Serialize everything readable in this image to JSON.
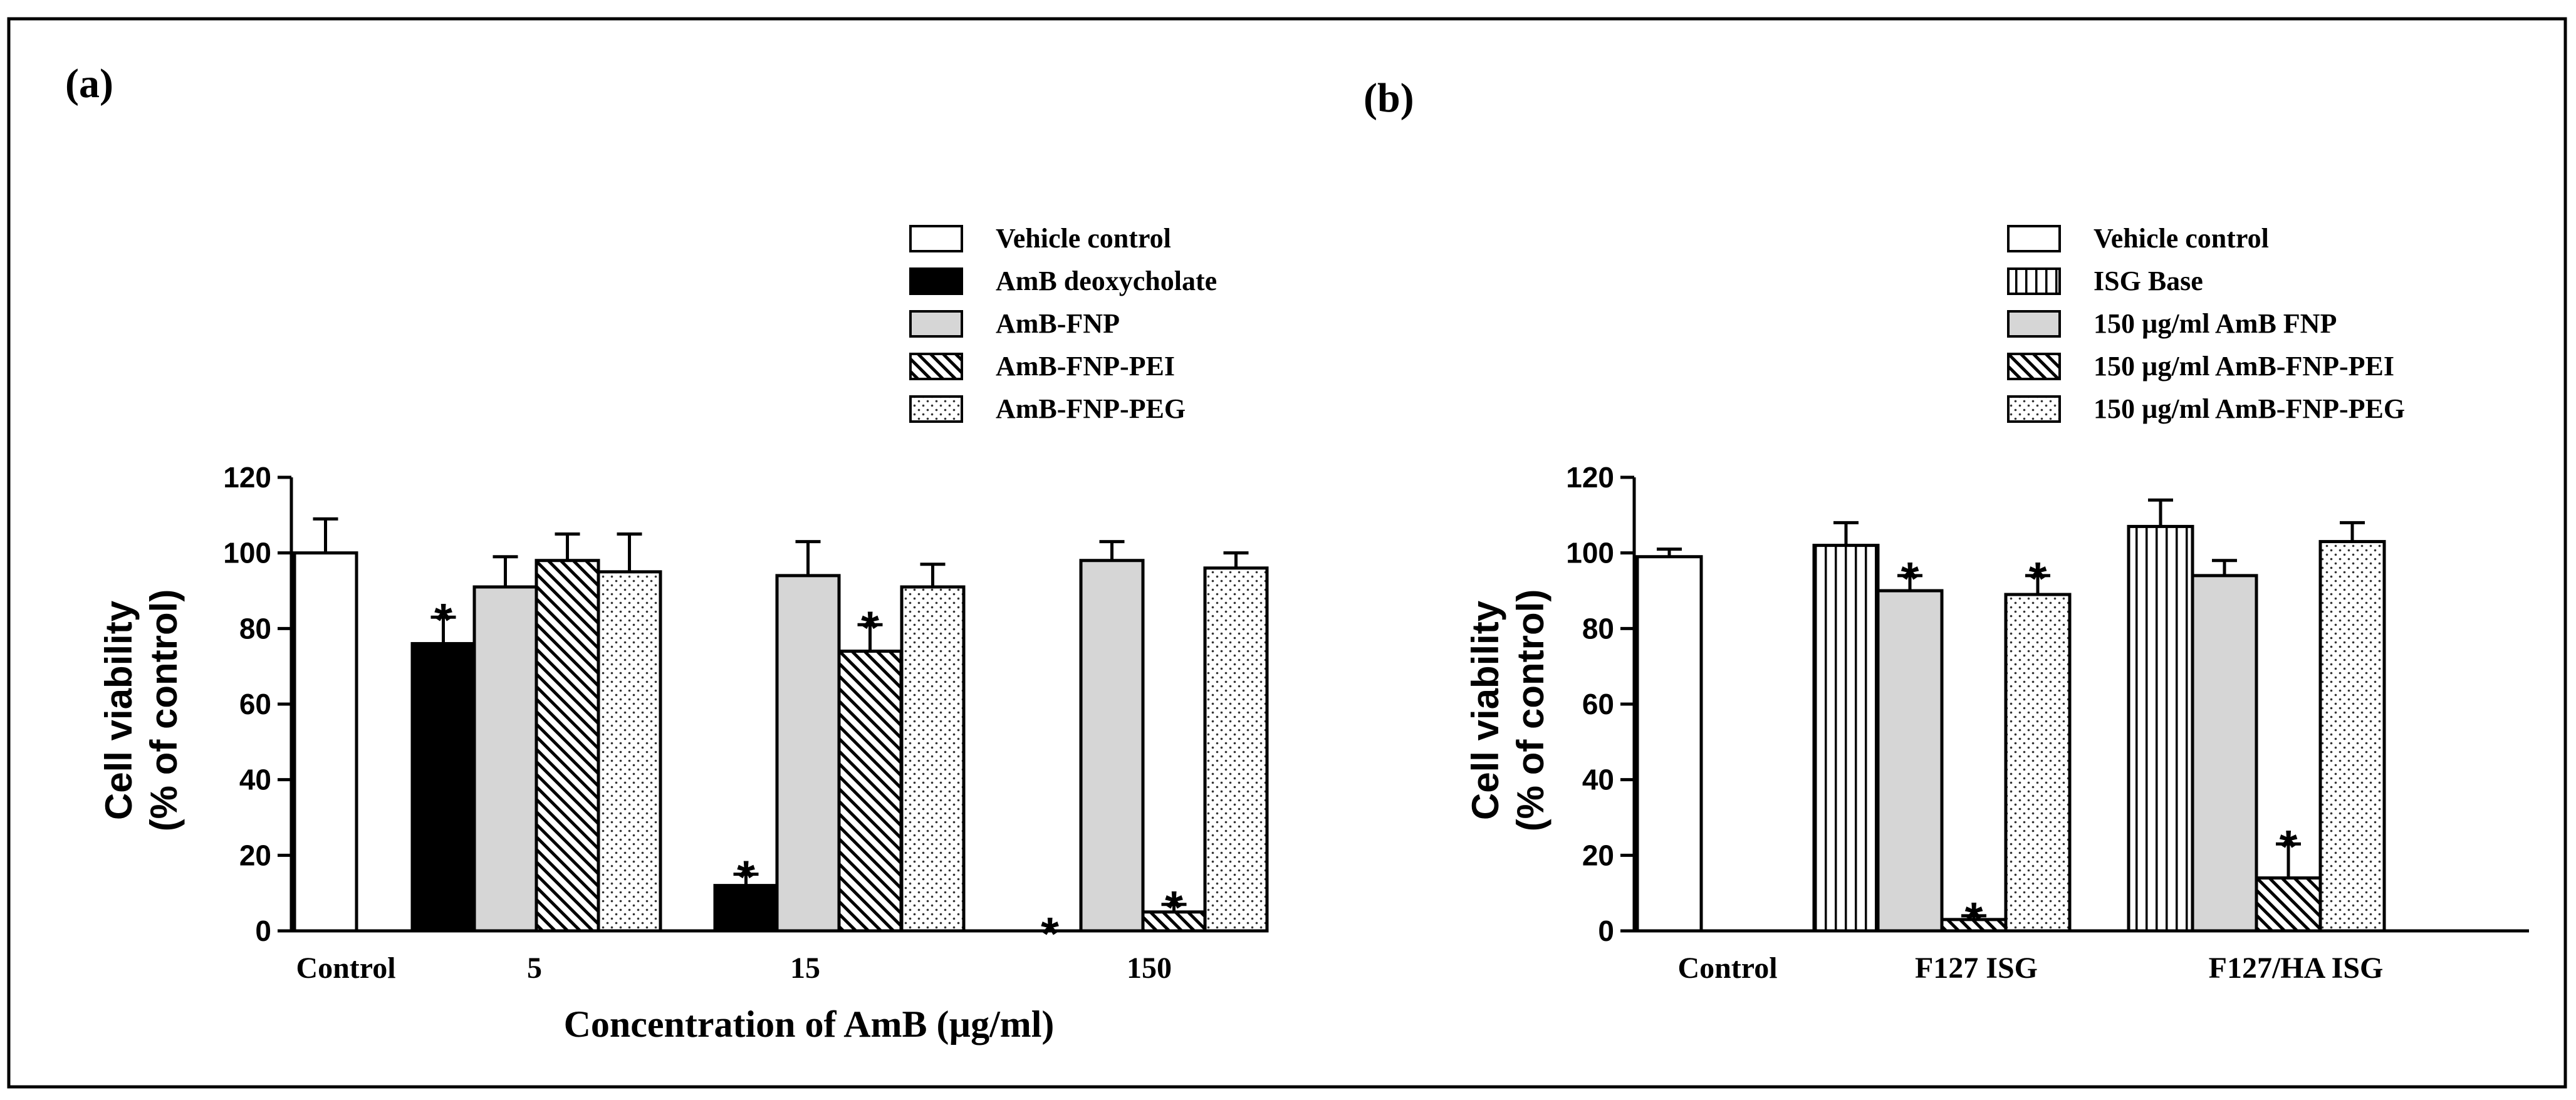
{
  "colors": {
    "vehicle": "#ffffff",
    "deoxycholate": "#000000",
    "fnp": "#d6d6d6",
    "axis": "#000000"
  },
  "chart_data": [
    {
      "panel_label": "(a)",
      "type": "bar",
      "ylabel": "Cell viability",
      "ylabel2": "(% of control)",
      "xlabel": "Concentration of AmB (µg/ml)",
      "ylim": [
        0,
        120
      ],
      "yticks": [
        "0",
        "20",
        "40",
        "60",
        "80",
        "100",
        "120"
      ],
      "categories": [
        "Control",
        "5",
        "15",
        "150"
      ],
      "legend": [
        {
          "label": "Vehicle control",
          "pattern": "white"
        },
        {
          "label": "AmB deoxycholate",
          "pattern": "black"
        },
        {
          "label": "AmB-FNP",
          "pattern": "gray"
        },
        {
          "label": "AmB-FNP-PEI",
          "pattern": "hatch"
        },
        {
          "label": "AmB-FNP-PEG",
          "pattern": "dots"
        }
      ],
      "series": [
        {
          "name": "Vehicle control",
          "values": [
            100,
            null,
            null,
            null
          ],
          "errors": [
            9,
            null,
            null,
            null
          ],
          "significant": [
            false,
            false,
            false,
            false
          ]
        },
        {
          "name": "AmB deoxycholate",
          "values": [
            null,
            76,
            12,
            0
          ],
          "errors": [
            null,
            7,
            3,
            0
          ],
          "significant": [
            false,
            true,
            true,
            true
          ]
        },
        {
          "name": "AmB-FNP",
          "values": [
            null,
            91,
            94,
            98
          ],
          "errors": [
            null,
            8,
            9,
            5
          ],
          "significant": [
            false,
            false,
            false,
            false
          ]
        },
        {
          "name": "AmB-FNP-PEI",
          "values": [
            null,
            98,
            74,
            5
          ],
          "errors": [
            null,
            7,
            7,
            2
          ],
          "significant": [
            false,
            false,
            true,
            true
          ]
        },
        {
          "name": "AmB-FNP-PEG",
          "values": [
            null,
            95,
            91,
            96
          ],
          "errors": [
            null,
            10,
            6,
            4
          ],
          "significant": [
            false,
            false,
            false,
            false
          ]
        }
      ]
    },
    {
      "panel_label": "(b)",
      "type": "bar",
      "ylabel": "Cell viability",
      "ylabel2": "(% of control)",
      "xlabel": "",
      "ylim": [
        0,
        120
      ],
      "yticks": [
        "0",
        "20",
        "40",
        "60",
        "80",
        "100",
        "120"
      ],
      "categories": [
        "Control",
        "F127 ISG",
        "F127/HA ISG"
      ],
      "legend": [
        {
          "label": "Vehicle control",
          "pattern": "white"
        },
        {
          "label": "ISG Base",
          "pattern": "vlines"
        },
        {
          "label": "150 µg/ml AmB FNP",
          "pattern": "gray"
        },
        {
          "label": "150 µg/ml AmB-FNP-PEI",
          "pattern": "hatch"
        },
        {
          "label": "150 µg/ml AmB-FNP-PEG",
          "pattern": "dots"
        }
      ],
      "series": [
        {
          "name": "Vehicle control",
          "values": [
            99,
            null,
            null
          ],
          "errors": [
            2,
            null,
            null
          ],
          "significant": [
            false,
            false,
            false
          ]
        },
        {
          "name": "ISG Base",
          "values": [
            null,
            102,
            107
          ],
          "errors": [
            null,
            6,
            7
          ],
          "significant": [
            false,
            false,
            false
          ]
        },
        {
          "name": "150 µg/ml AmB FNP",
          "values": [
            null,
            90,
            94
          ],
          "errors": [
            null,
            4,
            4
          ],
          "significant": [
            false,
            true,
            false
          ]
        },
        {
          "name": "150 µg/ml AmB-FNP-PEI",
          "values": [
            null,
            3,
            14
          ],
          "errors": [
            null,
            1,
            9
          ],
          "significant": [
            false,
            true,
            true
          ]
        },
        {
          "name": "150 µg/ml AmB-FNP-PEG",
          "values": [
            null,
            89,
            103
          ],
          "errors": [
            null,
            5,
            5
          ],
          "significant": [
            false,
            true,
            false
          ]
        }
      ]
    }
  ]
}
